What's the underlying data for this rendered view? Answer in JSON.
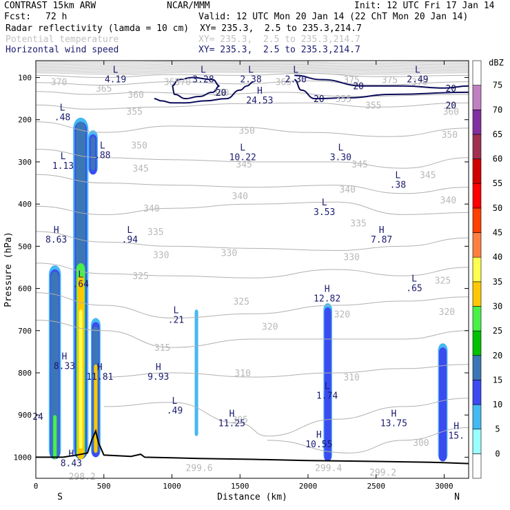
{
  "header": {
    "model": "CONTRAST 15km ARW",
    "center": "NCAR/MMM",
    "init": "Init: 12 UTC Fri 17 Jan 14",
    "fcst_label": "Fcst:",
    "fcst_value": "72 h",
    "valid": "Valid: 12 UTC Mon 20 Jan 14 (22 ChT Mon 20 Jan 14)",
    "fields": [
      {
        "name": "Radar reflectivity (lamda = 10 cm)",
        "xy": "XY= 235.3,  2.5 to 235.3,214.7",
        "color": "#000000"
      },
      {
        "name": "Potential temperature",
        "xy": "XY= 235.3,  2.5 to 235.3,214.7",
        "color": "#c0c0c0"
      },
      {
        "name": "Horizontal wind speed",
        "xy": "XY= 235.3,  2.5 to 235.3,214.7",
        "color": "#1a1a6e"
      }
    ]
  },
  "chart_data": {
    "type": "heatmap",
    "xlabel": "Distance (km)",
    "ylabel": "Pressure (hPa)",
    "xlim": [
      0,
      3180
    ],
    "ylim": [
      1050,
      60
    ],
    "x_ticks": [
      0,
      500,
      1000,
      1500,
      2000,
      2500,
      3000
    ],
    "x_tick_labels": [
      "0",
      "500",
      "1000",
      "1500",
      "2000",
      "2500",
      "3000"
    ],
    "y_ticks": [
      100,
      200,
      300,
      400,
      500,
      600,
      700,
      800,
      900,
      1000
    ],
    "y_tick_labels": [
      "100",
      "200",
      "300",
      "400",
      "500",
      "600",
      "700",
      "800",
      "900",
      "1000"
    ],
    "end_labels": {
      "left": "S",
      "right": "N"
    },
    "colorbar": {
      "unit": "dBZ",
      "levels": [
        0,
        5,
        10,
        15,
        20,
        25,
        30,
        35,
        40,
        45,
        50,
        55,
        60,
        65,
        70,
        75
      ],
      "colors": [
        "#ffffff",
        "#9affff",
        "#45b9f2",
        "#3c4bf0",
        "#3b77b5",
        "#00c000",
        "#48f048",
        "#ffc800",
        "#ffff50",
        "#ff8040",
        "#ff4000",
        "#ff0000",
        "#d00000",
        "#a03050",
        "#8030a0",
        "#c080c0",
        "#ffffff"
      ]
    },
    "theta_labels": [
      {
        "x": 170,
        "p": 110,
        "text": "370"
      },
      {
        "x": 500,
        "p": 125,
        "text": "365"
      },
      {
        "x": 735,
        "p": 140,
        "text": "360"
      },
      {
        "x": 1000,
        "p": 110,
        "text": "365"
      },
      {
        "x": 1080,
        "p": 110,
        "text": "370"
      },
      {
        "x": 1360,
        "p": 135,
        "text": "360"
      },
      {
        "x": 1820,
        "p": 110,
        "text": "365"
      },
      {
        "x": 2320,
        "p": 105,
        "text": "375"
      },
      {
        "x": 2600,
        "p": 105,
        "text": "375"
      },
      {
        "x": 2820,
        "p": 110,
        "text": "370"
      },
      {
        "x": 2260,
        "p": 150,
        "text": "355"
      },
      {
        "x": 2480,
        "p": 165,
        "text": "355"
      },
      {
        "x": 725,
        "p": 180,
        "text": "355"
      },
      {
        "x": 3050,
        "p": 180,
        "text": "360"
      },
      {
        "x": 1550,
        "p": 225,
        "text": "350"
      },
      {
        "x": 3040,
        "p": 235,
        "text": "350"
      },
      {
        "x": 760,
        "p": 260,
        "text": "350"
      },
      {
        "x": 770,
        "p": 315,
        "text": "345"
      },
      {
        "x": 2880,
        "p": 330,
        "text": "345"
      },
      {
        "x": 1530,
        "p": 305,
        "text": "345"
      },
      {
        "x": 2380,
        "p": 305,
        "text": "345"
      },
      {
        "x": 1500,
        "p": 380,
        "text": "340"
      },
      {
        "x": 2290,
        "p": 365,
        "text": "340"
      },
      {
        "x": 3030,
        "p": 390,
        "text": "340"
      },
      {
        "x": 850,
        "p": 410,
        "text": "340"
      },
      {
        "x": 880,
        "p": 465,
        "text": "335"
      },
      {
        "x": 2370,
        "p": 445,
        "text": "335"
      },
      {
        "x": 920,
        "p": 520,
        "text": "330"
      },
      {
        "x": 1420,
        "p": 515,
        "text": "330"
      },
      {
        "x": 2320,
        "p": 525,
        "text": "330"
      },
      {
        "x": 2990,
        "p": 580,
        "text": "325"
      },
      {
        "x": 770,
        "p": 570,
        "text": "325"
      },
      {
        "x": 1510,
        "p": 630,
        "text": "325"
      },
      {
        "x": 3020,
        "p": 655,
        "text": "320"
      },
      {
        "x": 1720,
        "p": 690,
        "text": "320"
      },
      {
        "x": 2250,
        "p": 660,
        "text": "320"
      },
      {
        "x": 930,
        "p": 740,
        "text": "315"
      },
      {
        "x": 1520,
        "p": 800,
        "text": "310"
      },
      {
        "x": 2320,
        "p": 810,
        "text": "310"
      },
      {
        "x": 1500,
        "p": 910,
        "text": "305"
      },
      {
        "x": 2830,
        "p": 965,
        "text": "300"
      },
      {
        "x": 1200,
        "p": 1025,
        "text": "299.6"
      },
      {
        "x": 2150,
        "p": 1025,
        "text": "299.4"
      },
      {
        "x": 2550,
        "p": 1035,
        "text": "299.2"
      },
      {
        "x": 340,
        "p": 1045,
        "text": "298.2"
      }
    ],
    "theta_lines": [
      [
        [
          0,
          95
        ],
        [
          500,
          100
        ],
        [
          1000,
          93
        ],
        [
          1500,
          95
        ],
        [
          2000,
          90
        ],
        [
          2500,
          98
        ],
        [
          3180,
          95
        ]
      ],
      [
        [
          0,
          112
        ],
        [
          500,
          118
        ],
        [
          1000,
          110
        ],
        [
          1500,
          115
        ],
        [
          2000,
          108
        ],
        [
          2500,
          118
        ],
        [
          3180,
          110
        ]
      ],
      [
        [
          0,
          133
        ],
        [
          400,
          140
        ],
        [
          800,
          135
        ],
        [
          1300,
          140
        ],
        [
          1800,
          135
        ],
        [
          2300,
          145
        ],
        [
          3180,
          140
        ]
      ],
      [
        [
          0,
          165
        ],
        [
          400,
          175
        ],
        [
          900,
          170
        ],
        [
          1500,
          162
        ],
        [
          2000,
          160
        ],
        [
          2500,
          170
        ],
        [
          3180,
          160
        ]
      ],
      [
        [
          0,
          205
        ],
        [
          500,
          230
        ],
        [
          1000,
          215
        ],
        [
          1500,
          218
        ],
        [
          2000,
          230
        ],
        [
          2600,
          240
        ],
        [
          3180,
          220
        ]
      ],
      [
        [
          0,
          270
        ],
        [
          500,
          290
        ],
        [
          1000,
          295
        ],
        [
          1600,
          300
        ],
        [
          2200,
          300
        ],
        [
          2700,
          315
        ],
        [
          3180,
          290
        ]
      ],
      [
        [
          0,
          330
        ],
        [
          500,
          350
        ],
        [
          1000,
          355
        ],
        [
          1600,
          360
        ],
        [
          2200,
          355
        ],
        [
          2700,
          375
        ],
        [
          3180,
          360
        ]
      ],
      [
        [
          0,
          405
        ],
        [
          500,
          425
        ],
        [
          1000,
          410
        ],
        [
          1600,
          400
        ],
        [
          2200,
          395
        ],
        [
          2700,
          425
        ],
        [
          3180,
          420
        ]
      ],
      [
        [
          0,
          465
        ],
        [
          500,
          490
        ],
        [
          1000,
          500
        ],
        [
          1600,
          505
        ],
        [
          2200,
          510
        ],
        [
          2700,
          500
        ],
        [
          3180,
          480
        ]
      ],
      [
        [
          0,
          540
        ],
        [
          500,
          565
        ],
        [
          1000,
          570
        ],
        [
          1600,
          575
        ],
        [
          2200,
          555
        ],
        [
          2700,
          570
        ],
        [
          3180,
          550
        ]
      ],
      [
        [
          0,
          610
        ],
        [
          500,
          640
        ],
        [
          1000,
          670
        ],
        [
          1600,
          660
        ],
        [
          2200,
          640
        ],
        [
          2700,
          630
        ],
        [
          3180,
          620
        ]
      ],
      [
        [
          0,
          675
        ],
        [
          500,
          700
        ],
        [
          1000,
          740
        ],
        [
          1600,
          720
        ],
        [
          2200,
          720
        ],
        [
          2700,
          720
        ],
        [
          3180,
          700
        ]
      ],
      [
        [
          500,
          810
        ],
        [
          1000,
          800
        ],
        [
          1600,
          810
        ],
        [
          2200,
          800
        ],
        [
          2700,
          790
        ],
        [
          3180,
          780
        ]
      ],
      [
        [
          500,
          880
        ],
        [
          1000,
          870
        ],
        [
          1500,
          920
        ],
        [
          1700,
          950
        ],
        [
          2200,
          910
        ],
        [
          2700,
          880
        ],
        [
          3180,
          860
        ]
      ],
      [
        [
          1700,
          960
        ],
        [
          2300,
          990
        ],
        [
          2700,
          960
        ],
        [
          3180,
          930
        ]
      ]
    ],
    "wind_contours": [
      {
        "label": "20",
        "points": [
          [
            1000,
            120
          ],
          [
            1020,
            140
          ],
          [
            1100,
            150
          ],
          [
            1200,
            145
          ],
          [
            1300,
            135
          ],
          [
            1350,
            120
          ],
          [
            1300,
            105
          ],
          [
            1150,
            100
          ],
          [
            1050,
            105
          ],
          [
            1000,
            120
          ]
        ]
      },
      {
        "label": "20",
        "points": [
          [
            870,
            150
          ],
          [
            920,
            155
          ],
          [
            1000,
            160
          ],
          [
            1100,
            160
          ],
          [
            1250,
            155
          ],
          [
            1400,
            150
          ],
          [
            1500,
            130
          ],
          [
            1550,
            120
          ],
          [
            1600,
            110
          ]
        ]
      },
      {
        "label": "20",
        "points": [
          [
            1900,
            105
          ],
          [
            1950,
            130
          ],
          [
            2050,
            150
          ],
          [
            2300,
            148
          ],
          [
            2600,
            140
          ],
          [
            3180,
            135
          ]
        ]
      },
      {
        "label": "20",
        "points": [
          [
            1900,
            95
          ],
          [
            2100,
            105
          ],
          [
            2400,
            120
          ],
          [
            2700,
            120
          ],
          [
            3000,
            125
          ],
          [
            3180,
            120
          ]
        ]
      }
    ],
    "wind_contour_labels": [
      {
        "x": 1360,
        "p": 135,
        "text": "20"
      },
      {
        "x": 2080,
        "p": 150,
        "text": "20"
      },
      {
        "x": 2370,
        "p": 120,
        "text": "20"
      },
      {
        "x": 3050,
        "p": 125,
        "text": "20"
      },
      {
        "x": 3050,
        "p": 165,
        "text": "20"
      }
    ],
    "wind_extrema": [
      {
        "x": 585,
        "p": 95,
        "tag": "L",
        "value": "4.19"
      },
      {
        "x": 1230,
        "p": 95,
        "tag": "L",
        "value": "3.28"
      },
      {
        "x": 1580,
        "p": 95,
        "tag": "L",
        "value": "2.38"
      },
      {
        "x": 1910,
        "p": 95,
        "tag": "L",
        "value": "2.30"
      },
      {
        "x": 2805,
        "p": 95,
        "tag": "L",
        "value": "2.49"
      },
      {
        "x": 1645,
        "p": 145,
        "tag": "H",
        "value": "24.53"
      },
      {
        "x": 195,
        "p": 185,
        "tag": "L",
        "value": ".48"
      },
      {
        "x": 490,
        "p": 275,
        "tag": "L",
        "value": ".88"
      },
      {
        "x": 200,
        "p": 300,
        "tag": "L",
        "value": "1.13"
      },
      {
        "x": 1520,
        "p": 280,
        "tag": "L",
        "value": "10.22"
      },
      {
        "x": 2240,
        "p": 280,
        "tag": "L",
        "value": "3.30"
      },
      {
        "x": 2660,
        "p": 345,
        "tag": "L",
        "value": ".38"
      },
      {
        "x": 2120,
        "p": 410,
        "tag": "L",
        "value": "3.53"
      },
      {
        "x": 150,
        "p": 475,
        "tag": "H",
        "value": "8.63"
      },
      {
        "x": 690,
        "p": 475,
        "tag": "L",
        "value": ".94"
      },
      {
        "x": 2540,
        "p": 475,
        "tag": "H",
        "value": "7.87"
      },
      {
        "x": 330,
        "p": 580,
        "tag": "L",
        "value": ".64"
      },
      {
        "x": 2780,
        "p": 590,
        "tag": "L",
        "value": ".65"
      },
      {
        "x": 2140,
        "p": 615,
        "tag": "H",
        "value": "12.82"
      },
      {
        "x": 1030,
        "p": 665,
        "tag": "L",
        "value": ".21"
      },
      {
        "x": 210,
        "p": 775,
        "tag": "H",
        "value": "8.33"
      },
      {
        "x": 470,
        "p": 800,
        "tag": "H",
        "value": "11.81"
      },
      {
        "x": 900,
        "p": 800,
        "tag": "H",
        "value": "9.93"
      },
      {
        "x": 2140,
        "p": 845,
        "tag": "L",
        "value": "1.74"
      },
      {
        "x": 1020,
        "p": 880,
        "tag": "L",
        "value": ".49"
      },
      {
        "x": 1440,
        "p": 910,
        "tag": "H",
        "value": "11.25"
      },
      {
        "x": 2630,
        "p": 910,
        "tag": "H",
        "value": "13.75"
      },
      {
        "x": 3090,
        "p": 940,
        "tag": "H",
        "value": "15."
      },
      {
        "x": 2080,
        "p": 960,
        "tag": "H",
        "value": "10.55"
      },
      {
        "x": 260,
        "p": 1005,
        "tag": "H",
        "value": "8.43"
      },
      {
        "x": 15,
        "p": 895,
        "tag": "",
        "value": "24"
      }
    ],
    "terrain": [
      [
        0,
        1000
      ],
      [
        100,
        1000
      ],
      [
        200,
        1000
      ],
      [
        300,
        995
      ],
      [
        380,
        990
      ],
      [
        410,
        960
      ],
      [
        440,
        938
      ],
      [
        460,
        965
      ],
      [
        500,
        995
      ],
      [
        700,
        998
      ],
      [
        770,
        993
      ],
      [
        800,
        1000
      ],
      [
        1200,
        1003
      ],
      [
        1600,
        1005
      ],
      [
        2000,
        1008
      ],
      [
        2500,
        1010
      ],
      [
        2900,
        1012
      ],
      [
        3180,
        1015
      ]
    ],
    "reflectivity_cells": [
      {
        "x": 140,
        "p_top": 545,
        "p_bot": 1005,
        "halfwidth": 28,
        "core": [
          {
            "p_top": 560,
            "p_bot": 1005,
            "hw": 18,
            "dbz": 15
          },
          {
            "p_top": 900,
            "p_bot": 1005,
            "hw": 8,
            "dbz": 25
          }
        ]
      },
      {
        "x": 330,
        "p_top": 195,
        "p_bot": 1005,
        "halfwidth": 35,
        "core": [
          {
            "p_top": 205,
            "p_bot": 1005,
            "hw": 22,
            "dbz": 15
          },
          {
            "p_top": 540,
            "p_bot": 1005,
            "hw": 20,
            "dbz": 25
          },
          {
            "p_top": 570,
            "p_bot": 1005,
            "hw": 16,
            "dbz": 30
          },
          {
            "p_top": 650,
            "p_bot": 980,
            "hw": 8,
            "dbz": 35
          }
        ]
      },
      {
        "x": 420,
        "p_top": 225,
        "p_bot": 330,
        "halfwidth": 22,
        "core": [
          {
            "p_top": 240,
            "p_bot": 320,
            "hw": 10,
            "dbz": 15
          }
        ]
      },
      {
        "x": 440,
        "p_top": 670,
        "p_bot": 1000,
        "halfwidth": 22,
        "core": [
          {
            "p_top": 690,
            "p_bot": 990,
            "hw": 14,
            "dbz": 15
          },
          {
            "p_top": 780,
            "p_bot": 990,
            "hw": 8,
            "dbz": 30
          }
        ]
      },
      {
        "x": 1180,
        "p_top": 650,
        "p_bot": 950,
        "halfwidth": 8,
        "core": []
      },
      {
        "x": 2145,
        "p_top": 635,
        "p_bot": 1010,
        "halfwidth": 20,
        "core": []
      },
      {
        "x": 2990,
        "p_top": 730,
        "p_bot": 1010,
        "halfwidth": 22,
        "core": []
      }
    ]
  }
}
